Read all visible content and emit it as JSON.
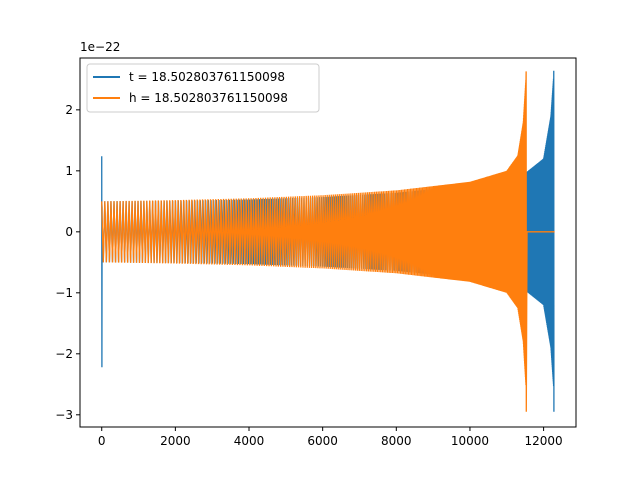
{
  "chart_data": {
    "type": "line",
    "title": "",
    "xlabel": "",
    "ylabel": "",
    "y_offset_label": "1e−22",
    "xlim": [
      -590,
      12880
    ],
    "ylim": [
      -3.2,
      2.85
    ],
    "x_ticks": [
      0,
      2000,
      4000,
      6000,
      8000,
      10000,
      12000
    ],
    "x_tick_labels": [
      "0",
      "2000",
      "4000",
      "6000",
      "8000",
      "10000",
      "12000"
    ],
    "y_ticks": [
      -3,
      -2,
      -1,
      0,
      1,
      2
    ],
    "y_tick_labels": [
      "−3",
      "−2",
      "−1",
      "0",
      "1",
      "2"
    ],
    "grid": false,
    "legend_position": "top-left",
    "series": [
      {
        "name": "t = 18.502803761150098",
        "color": "#1f77b4",
        "spike_start": {
          "x": 0,
          "max": 1.24,
          "min": -2.22
        },
        "envelope": [
          {
            "x": 0,
            "amp": 0.5
          },
          {
            "x": 2000,
            "amp": 0.51
          },
          {
            "x": 4000,
            "amp": 0.53
          },
          {
            "x": 6000,
            "amp": 0.57
          },
          {
            "x": 8000,
            "amp": 0.64
          },
          {
            "x": 10000,
            "amp": 0.76
          },
          {
            "x": 11000,
            "amp": 0.88
          },
          {
            "x": 11500,
            "amp": 0.96
          },
          {
            "x": 12000,
            "amp": 1.2
          },
          {
            "x": 12200,
            "amp": 1.9
          },
          {
            "x": 12280,
            "amp": 2.6
          }
        ],
        "merger_extrema": {
          "x": 12280,
          "max": 2.64,
          "min": -2.95
        }
      },
      {
        "name": "h = 18.502803761150098",
        "color": "#ff7f0e",
        "envelope": [
          {
            "x": 0,
            "amp": 0.5
          },
          {
            "x": 2000,
            "amp": 0.52
          },
          {
            "x": 4000,
            "amp": 0.55
          },
          {
            "x": 6000,
            "amp": 0.6
          },
          {
            "x": 8000,
            "amp": 0.68
          },
          {
            "x": 10000,
            "amp": 0.82
          },
          {
            "x": 11000,
            "amp": 1.0
          },
          {
            "x": 11300,
            "amp": 1.25
          },
          {
            "x": 11450,
            "amp": 1.8
          },
          {
            "x": 11530,
            "amp": 2.6
          }
        ],
        "merger_extrema": {
          "x": 11530,
          "max": 2.63,
          "min": -2.95
        },
        "ringdown": {
          "x_start": 11530,
          "x_end": 12300,
          "value": 0.0
        }
      }
    ]
  }
}
